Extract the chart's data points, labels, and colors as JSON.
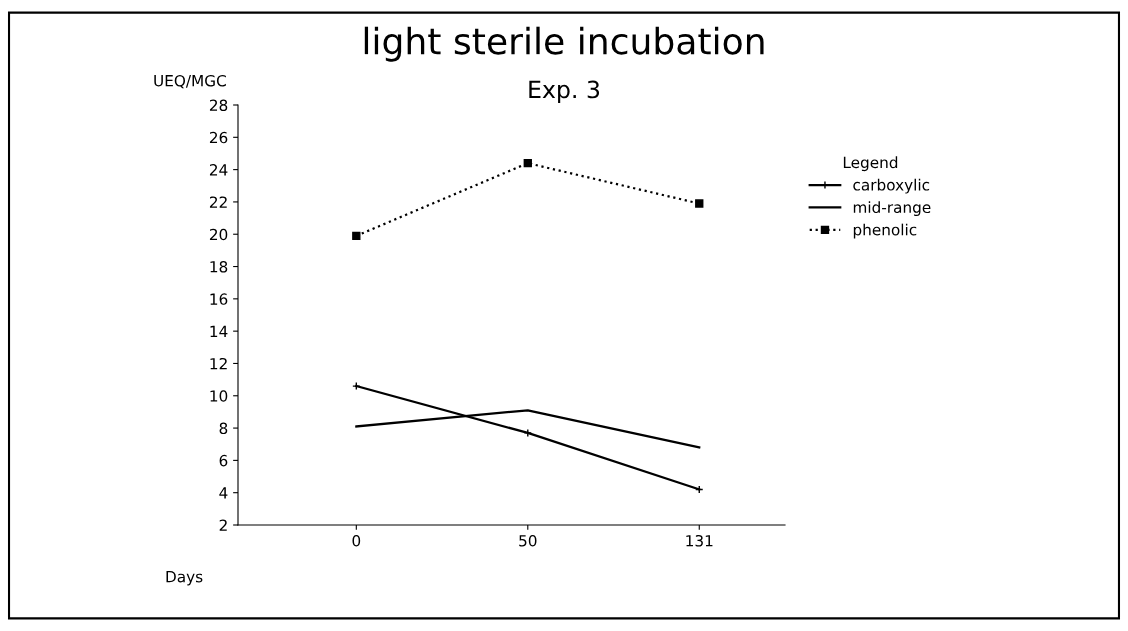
{
  "chart_data": {
    "type": "line",
    "title": "light sterile incubation",
    "subtitle": "Exp. 3",
    "xlabel": "Days",
    "ylabel": "UEQ/MGC",
    "legend_title": "Legend",
    "categories": [
      "0",
      "50",
      "131"
    ],
    "series": [
      {
        "name": "carboxylic",
        "color": "#000000",
        "values": [
          10.6,
          7.7,
          4.2
        ],
        "marker": "cross",
        "line_style": "solid"
      },
      {
        "name": "mid-range",
        "color": "#000000",
        "values": [
          8.1,
          9.1,
          6.8
        ],
        "marker": "none",
        "line_style": "solid"
      },
      {
        "name": "phenolic",
        "color": "#000000",
        "values": [
          19.9,
          24.4,
          21.9
        ],
        "marker": "square",
        "line_style": "dotted"
      }
    ],
    "ylim": [
      2,
      28
    ],
    "yticks": [
      2,
      4,
      6,
      8,
      10,
      12,
      14,
      16,
      18,
      20,
      22,
      24,
      26,
      28
    ],
    "grid": false,
    "legend": "right"
  }
}
